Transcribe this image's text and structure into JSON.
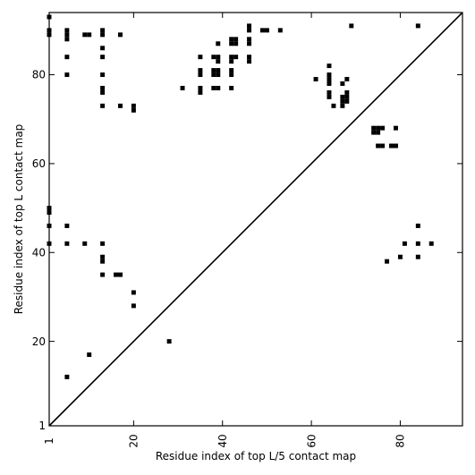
{
  "chart_data": {
    "type": "scatter",
    "title": "",
    "xlabel": "Residue index of top L/5 contact map",
    "ylabel": "Residue index of top L contact map",
    "xlim": [
      1,
      94
    ],
    "ylim": [
      1,
      94
    ],
    "x_ticks": [
      1,
      20,
      40,
      60,
      80
    ],
    "y_ticks": [
      1,
      20,
      40,
      60,
      80
    ],
    "grid": false,
    "diagonal": true,
    "marker": "square",
    "color": "#000000",
    "top_L_contacts": [
      [
        1,
        93
      ],
      [
        1,
        90
      ],
      [
        1,
        89
      ],
      [
        5,
        90
      ],
      [
        5,
        89
      ],
      [
        5,
        88
      ],
      [
        9,
        89
      ],
      [
        10,
        89
      ],
      [
        13,
        90
      ],
      [
        13,
        89
      ],
      [
        17,
        89
      ],
      [
        13,
        86
      ],
      [
        5,
        84
      ],
      [
        5,
        80
      ],
      [
        13,
        84
      ],
      [
        13,
        80
      ],
      [
        13,
        77
      ],
      [
        13,
        76
      ],
      [
        13,
        73
      ],
      [
        17,
        73
      ],
      [
        20,
        73
      ],
      [
        20,
        72
      ],
      [
        31,
        77
      ],
      [
        35,
        84
      ],
      [
        35,
        81
      ],
      [
        35,
        80
      ],
      [
        35,
        77
      ],
      [
        35,
        76
      ],
      [
        38,
        84
      ],
      [
        38,
        81
      ],
      [
        38,
        80
      ],
      [
        38,
        77
      ],
      [
        39,
        87
      ],
      [
        39,
        84
      ],
      [
        39,
        83
      ],
      [
        39,
        81
      ],
      [
        39,
        80
      ],
      [
        39,
        77
      ],
      [
        42,
        88
      ],
      [
        42,
        87
      ],
      [
        43,
        88
      ],
      [
        43,
        87
      ],
      [
        42,
        84
      ],
      [
        42,
        83
      ],
      [
        43,
        84
      ],
      [
        42,
        81
      ],
      [
        42,
        80
      ],
      [
        42,
        77
      ],
      [
        46,
        91
      ],
      [
        46,
        90
      ],
      [
        46,
        88
      ],
      [
        46,
        87
      ],
      [
        46,
        84
      ],
      [
        46,
        83
      ],
      [
        49,
        90
      ],
      [
        50,
        90
      ],
      [
        53,
        90
      ],
      [
        69,
        91
      ],
      [
        84,
        91
      ],
      [
        61,
        79
      ],
      [
        64,
        82
      ],
      [
        64,
        80
      ],
      [
        64,
        79
      ],
      [
        64,
        78
      ],
      [
        64,
        76
      ],
      [
        64,
        75
      ],
      [
        65,
        73
      ],
      [
        67,
        78
      ],
      [
        67,
        75
      ],
      [
        67,
        74
      ],
      [
        67,
        73
      ],
      [
        68,
        79
      ],
      [
        68,
        76
      ],
      [
        68,
        75
      ],
      [
        68,
        74
      ],
      [
        74,
        68
      ],
      [
        74,
        67
      ],
      [
        75,
        68
      ],
      [
        75,
        67
      ],
      [
        76,
        68
      ],
      [
        79,
        68
      ],
      [
        75,
        64
      ],
      [
        76,
        64
      ],
      [
        78,
        64
      ],
      [
        79,
        64
      ]
    ],
    "top_L5_contacts": [
      [
        1,
        50
      ],
      [
        1,
        49
      ],
      [
        1,
        46
      ],
      [
        1,
        42
      ],
      [
        5,
        46
      ],
      [
        5,
        42
      ],
      [
        9,
        42
      ],
      [
        13,
        42
      ],
      [
        13,
        39
      ],
      [
        13,
        38
      ],
      [
        13,
        35
      ],
      [
        16,
        35
      ],
      [
        17,
        35
      ],
      [
        20,
        31
      ],
      [
        20,
        28
      ],
      [
        28,
        20
      ],
      [
        10,
        17
      ],
      [
        5,
        12
      ],
      [
        77,
        38
      ],
      [
        80,
        39
      ],
      [
        81,
        42
      ],
      [
        84,
        46
      ],
      [
        84,
        42
      ],
      [
        84,
        39
      ],
      [
        87,
        42
      ]
    ]
  }
}
